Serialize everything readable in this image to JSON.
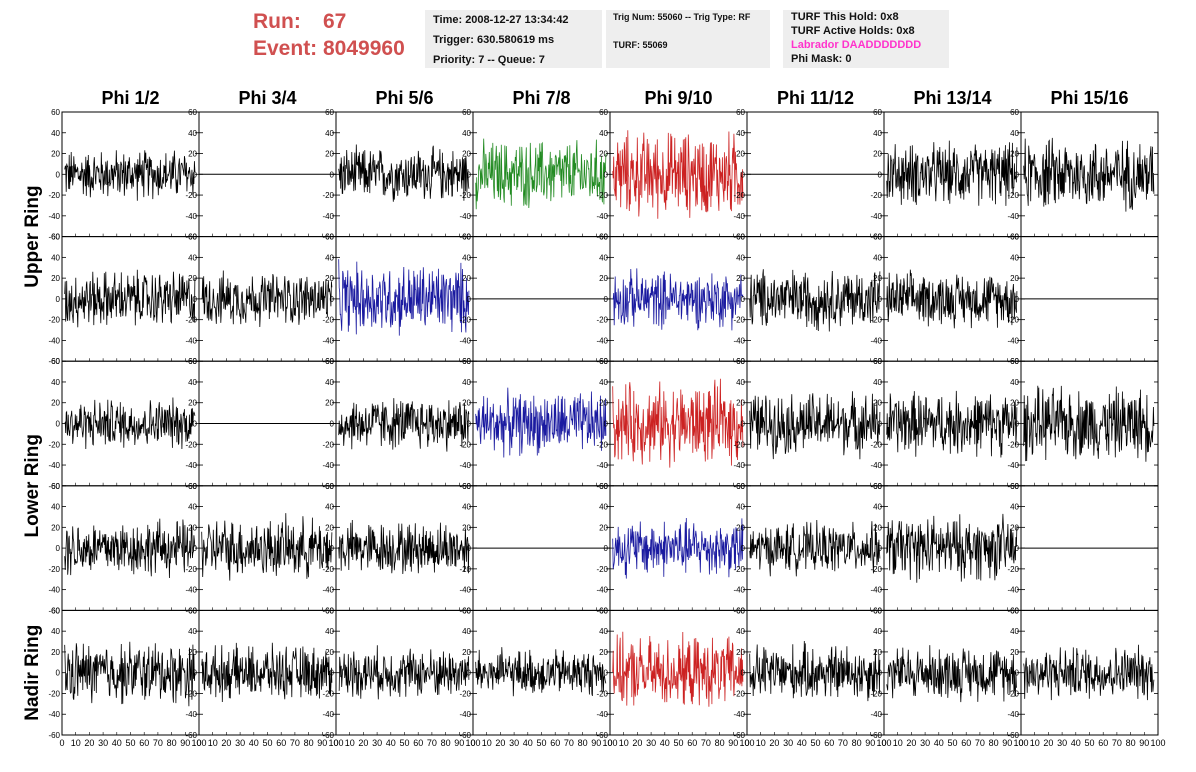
{
  "header": {
    "run_label": "Run:",
    "run_value": "67",
    "event_label": "Event:",
    "event_value": "8049960"
  },
  "info1": {
    "time": "Time: 2008-12-27 13:34:42",
    "trigger": "Trigger: 630.580619 ms",
    "priority": "Priority: 7 -- Queue: 7"
  },
  "info2": {
    "trig": "Trig Num: 55060 -- Trig Type: RF",
    "turf": "TURF: 55069"
  },
  "info3": {
    "hold": "TURF This Hold: 0x8",
    "active": "TURF Active Holds: 0x8",
    "labrador": "Labrador DAADDDDDDD",
    "phimask": "Phi Mask: 0"
  },
  "colors": {
    "run_text": "#d05050",
    "labrador_text": "#ff33cc",
    "trace_black": "#000000",
    "trace_green": "#228b22",
    "trace_red": "#cc2222",
    "trace_blue": "#1a1aa0",
    "info_bg": "#eeeeee"
  },
  "chart_data": {
    "type": "line",
    "layout": "grid of 5 rows x 8 columns of waveform panels",
    "columns": [
      "Phi 1/2",
      "Phi 3/4",
      "Phi 5/6",
      "Phi 7/8",
      "Phi 9/10",
      "Phi 11/12",
      "Phi 13/14",
      "Phi 15/16"
    ],
    "ring_labels": [
      {
        "label": "Upper Ring",
        "rows": [
          0,
          1
        ]
      },
      {
        "label": "Lower Ring",
        "rows": [
          2,
          3
        ]
      },
      {
        "label": "Nadir Ring",
        "rows": [
          4
        ]
      }
    ],
    "xlim": [
      0,
      100
    ],
    "ylim": [
      -60,
      60
    ],
    "x_ticks": [
      0,
      10,
      20,
      30,
      40,
      50,
      60,
      70,
      80,
      90,
      100
    ],
    "x_tick_labels_bottom": "0 10 20 30 40 50 60 70 80 90100",
    "y_ticks": [
      -60,
      -40,
      -20,
      0,
      20,
      40,
      60
    ],
    "panels": [
      [
        "black",
        "flat",
        "black",
        "green",
        "red",
        "flat",
        "black",
        "black"
      ],
      [
        "black",
        "black",
        "blue",
        "flat",
        "blue",
        "black",
        "black",
        "flat"
      ],
      [
        "black",
        "flat",
        "black",
        "blue",
        "red",
        "black",
        "black",
        "black"
      ],
      [
        "black",
        "black",
        "black",
        "flat",
        "blue",
        "black",
        "black",
        "flat"
      ],
      [
        "black",
        "black",
        "black",
        "black",
        "red",
        "black",
        "black",
        "black"
      ]
    ],
    "panel_amplitude": [
      [
        28,
        0,
        30,
        38,
        48,
        0,
        35,
        40
      ],
      [
        32,
        30,
        40,
        0,
        32,
        34,
        30,
        0
      ],
      [
        28,
        0,
        30,
        35,
        45,
        35,
        36,
        40
      ],
      [
        32,
        34,
        30,
        0,
        32,
        28,
        36,
        0
      ],
      [
        35,
        30,
        28,
        26,
        40,
        32,
        30,
        30
      ]
    ]
  }
}
